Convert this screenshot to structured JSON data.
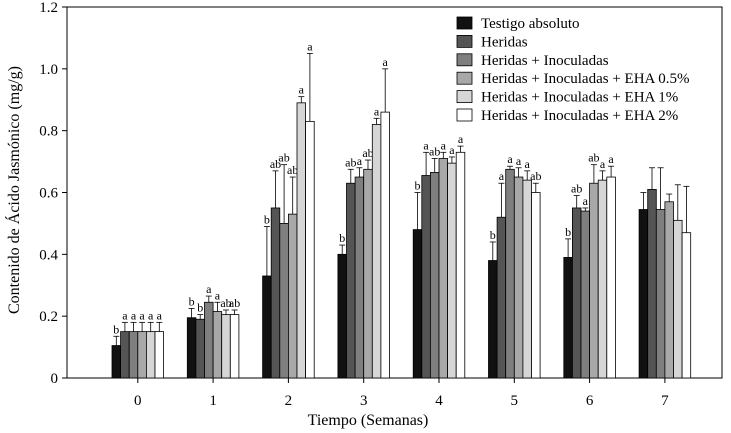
{
  "chart_data": {
    "type": "bar",
    "title": "",
    "xlabel": "Tiempo (Semanas)",
    "ylabel": "Contenido de Ácido Jasmónico (mg/g)",
    "ylim": [
      0,
      1.2
    ],
    "yticks": [
      0,
      0.2,
      0.4,
      0.6,
      0.8,
      1.0,
      1.2
    ],
    "ytick_labels": [
      "0",
      "0.2",
      "0.4",
      "0.6",
      "0.8",
      "1.0",
      "1.2"
    ],
    "categories": [
      "0",
      "1",
      "2",
      "3",
      "4",
      "5",
      "6",
      "7"
    ],
    "legend_position": "top-right",
    "series": [
      {
        "name": "Testigo absoluto",
        "color": "#111111",
        "values": [
          0.105,
          0.195,
          0.33,
          0.4,
          0.48,
          0.38,
          0.39,
          0.545
        ],
        "errors": [
          0.03,
          0.03,
          0.16,
          0.03,
          0.12,
          0.06,
          0.06,
          0.055
        ],
        "letters": [
          "b",
          "b",
          "b",
          "b",
          "b",
          "b",
          "b",
          ""
        ]
      },
      {
        "name": "Heridas",
        "color": "#555555",
        "values": [
          0.15,
          0.19,
          0.55,
          0.63,
          0.655,
          0.52,
          0.55,
          0.61
        ],
        "errors": [
          0.03,
          0.015,
          0.12,
          0.045,
          0.075,
          0.11,
          0.04,
          0.07
        ],
        "letters": [
          "a",
          "b",
          "ab",
          "ab",
          "a",
          "a",
          "ab",
          ""
        ]
      },
      {
        "name": "Heridas + Inoculadas",
        "color": "#7f7f7f",
        "values": [
          0.15,
          0.245,
          0.5,
          0.65,
          0.665,
          0.675,
          0.54,
          0.545
        ],
        "errors": [
          0.03,
          0.02,
          0.19,
          0.03,
          0.045,
          0.01,
          0.01,
          0.135
        ],
        "letters": [
          "a",
          "a",
          "ab",
          "a",
          "ab",
          "a",
          "a",
          ""
        ]
      },
      {
        "name": "Heridas + Inoculadas + EHA 0.5%",
        "color": "#a8a8a8",
        "values": [
          0.15,
          0.215,
          0.53,
          0.675,
          0.71,
          0.65,
          0.63,
          0.57
        ],
        "errors": [
          0.03,
          0.03,
          0.12,
          0.03,
          0.02,
          0.03,
          0.06,
          0.025
        ],
        "letters": [
          "a",
          "a",
          "ab",
          "ab",
          "a",
          "a",
          "ab",
          ""
        ]
      },
      {
        "name": "Heridas + Inoculadas + EHA 1%",
        "color": "#d6d6d6",
        "values": [
          0.15,
          0.205,
          0.89,
          0.82,
          0.695,
          0.64,
          0.64,
          0.51
        ],
        "errors": [
          0.03,
          0.015,
          0.02,
          0.02,
          0.02,
          0.03,
          0.03,
          0.115
        ],
        "letters": [
          "a",
          "ab",
          "a",
          "a",
          "a",
          "a",
          "a",
          ""
        ]
      },
      {
        "name": "Heridas + Inoculadas + EHA 2%",
        "color": "#ffffff",
        "values": [
          0.15,
          0.205,
          0.83,
          0.86,
          0.73,
          0.6,
          0.65,
          0.47
        ],
        "errors": [
          0.03,
          0.015,
          0.22,
          0.14,
          0.02,
          0.03,
          0.035,
          0.15
        ],
        "letters": [
          "a",
          "ab",
          "a",
          "a",
          "a",
          "ab",
          "a",
          ""
        ]
      }
    ]
  }
}
